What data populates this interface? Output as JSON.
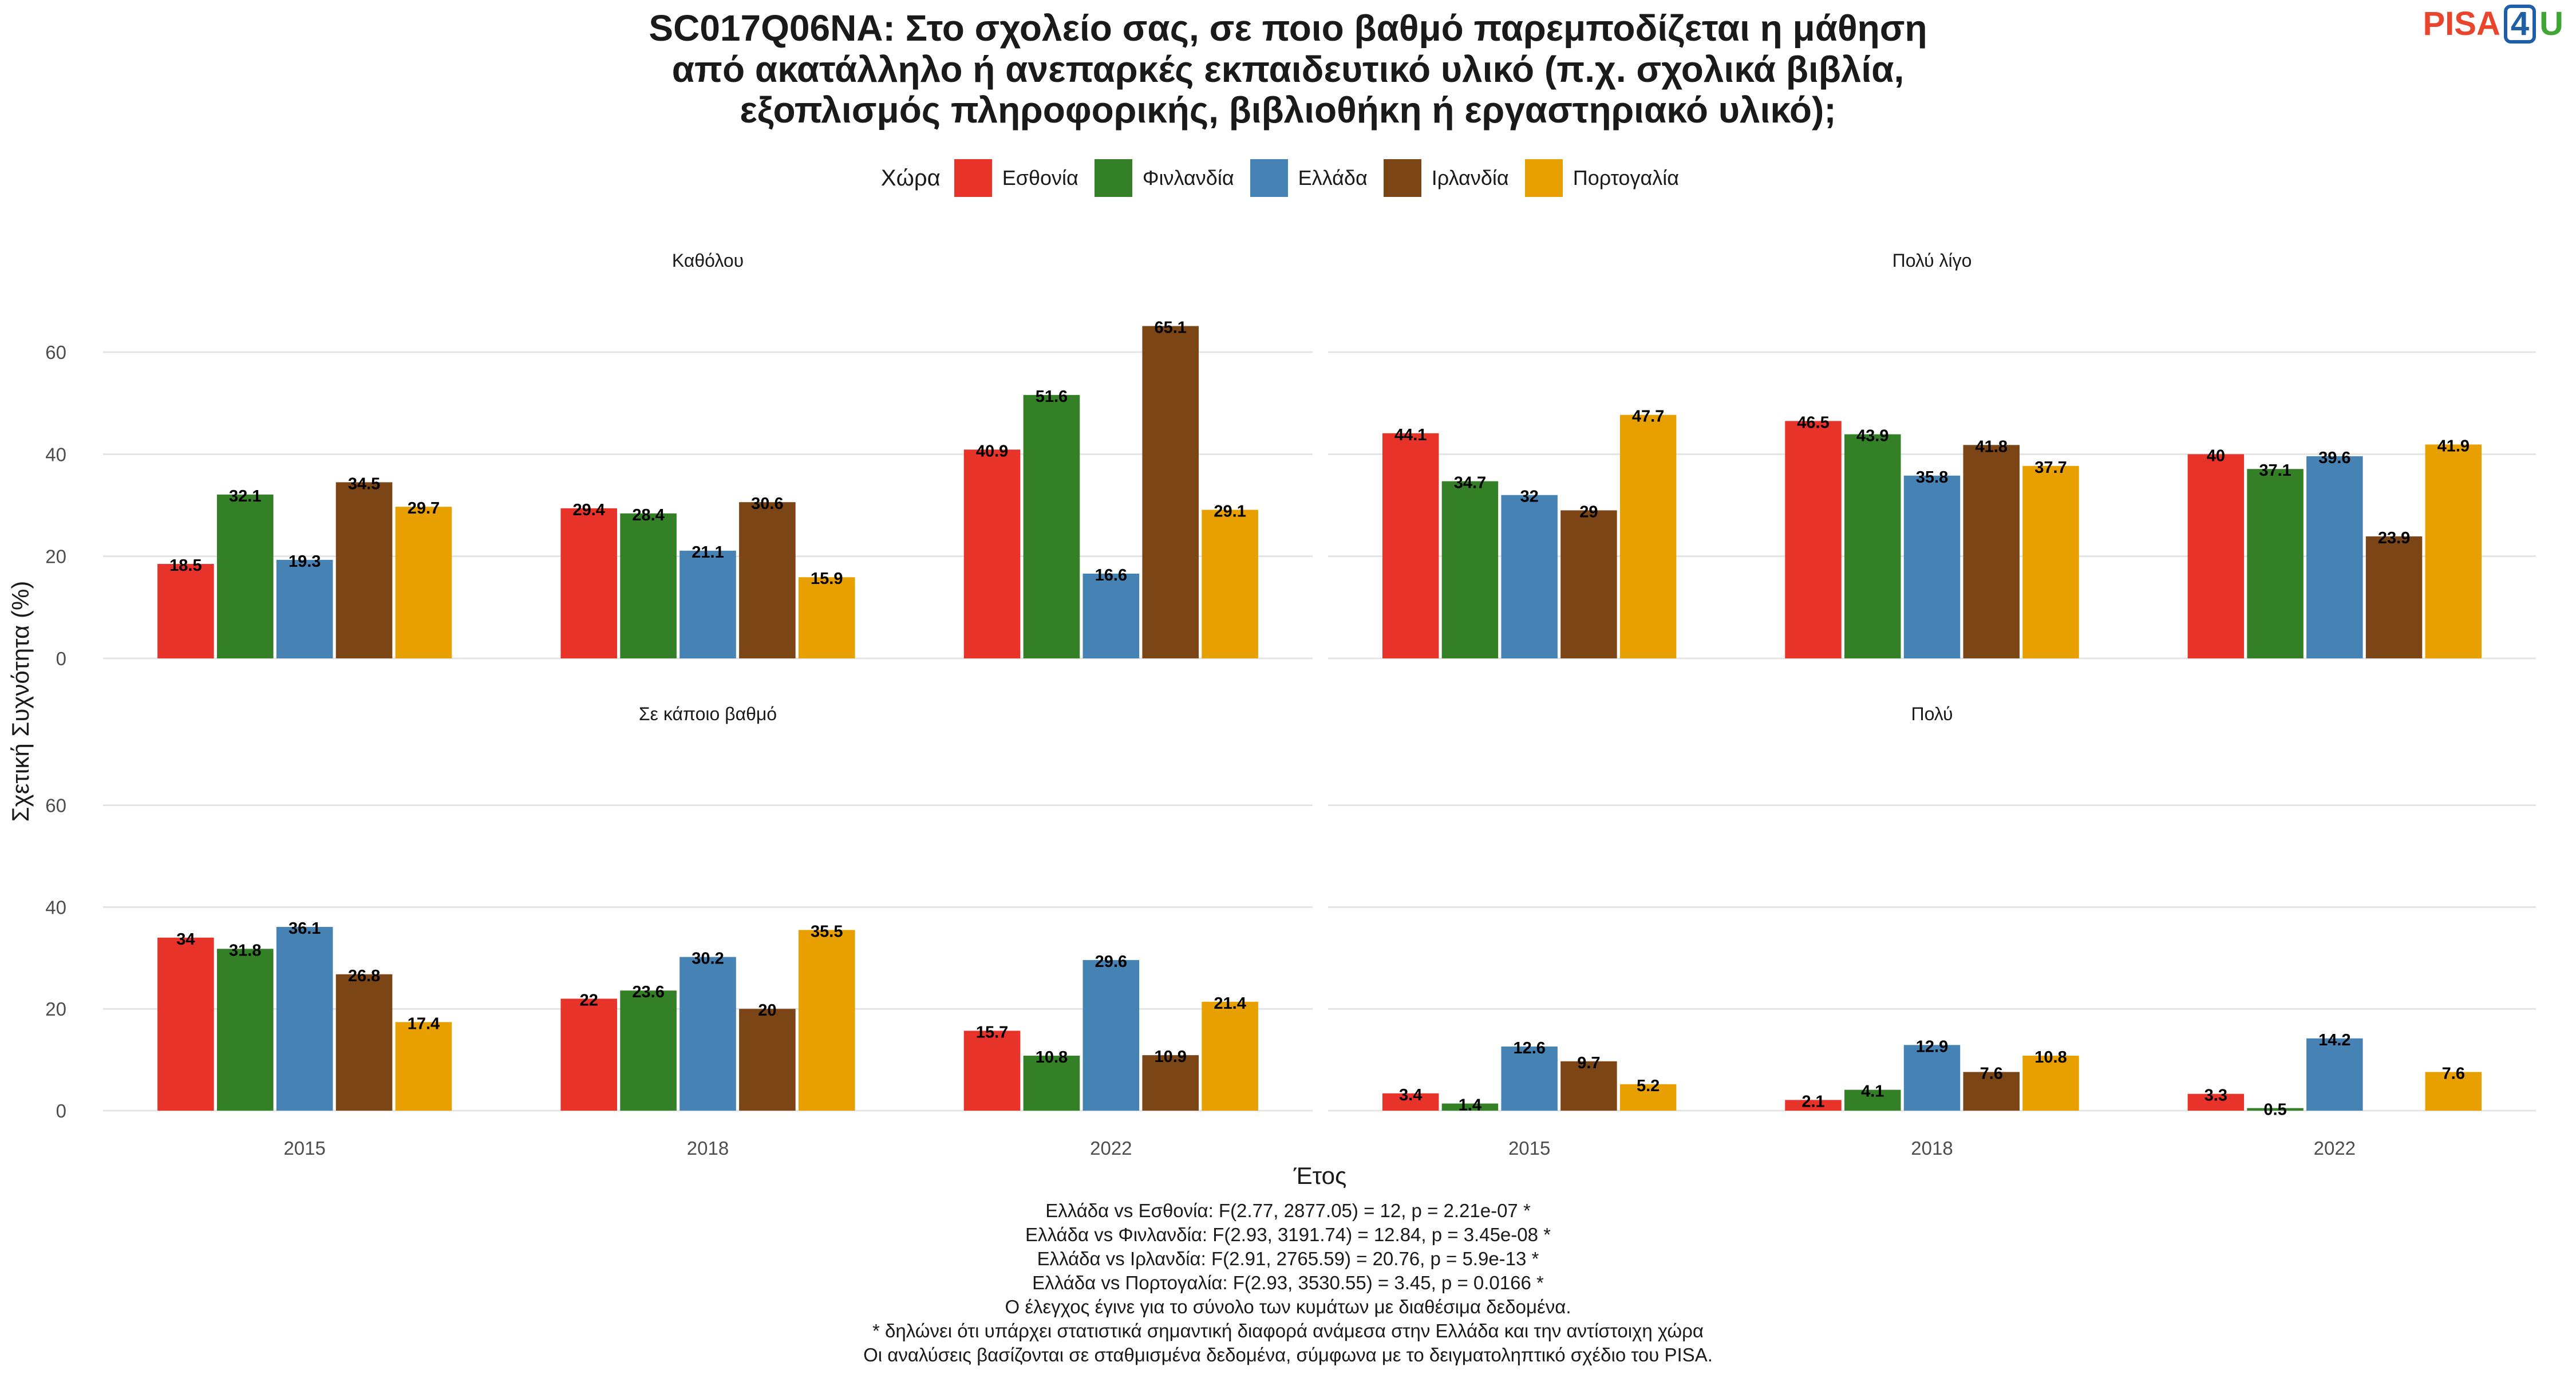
{
  "title_lines": [
    "SC017Q06NA: Στο σχολείο σας, σε ποιο βαθμό παρεμποδίζεται η μάθηση",
    "από ακατάλληλο ή ανεπαρκές εκπαιδευτικό υλικό (π.χ. σχολικά βιβλία,",
    "εξοπλισμός πληροφορικής, βιβλιοθήκη ή εργαστηριακό υλικό);"
  ],
  "logo": {
    "part1": "PISA",
    "part2": "4",
    "part3": "U"
  },
  "legend_title": "Χώρα",
  "colors": {
    "Εσθονία": "#E8332A",
    "Φινλανδία": "#338026",
    "Ελλάδα": "#4682B4",
    "Ιρλανδία": "#7B4516",
    "Πορτογαλία": "#E8A000"
  },
  "caption_lines": [
    "Ελλάδα vs Εσθονία: F(2.77, 2877.05) = 12, p = 2.21e-07 *",
    "Ελλάδα vs Φινλανδία: F(2.93, 3191.74) = 12.84, p = 3.45e-08 *",
    "Ελλάδα vs Ιρλανδία: F(2.91, 2765.59) = 20.76, p = 5.9e-13 *",
    "Ελλάδα vs Πορτογαλία: F(2.93, 3530.55) = 3.45, p = 0.0166 *",
    "Ο έλεγχος έγινε για το σύνολο των κυμάτων με διαθέσιμα δεδομένα.",
    "* δηλώνει ότι υπάρχει στατιστικά σημαντική διαφορά ανάμεσα στην Ελλάδα και την αντίστοιχη χώρα",
    "Οι αναλύσεις βασίζονται σε σταθμισμένα δεδομένα, σύμφωνα με το δειγματοληπτικό σχέδιο του PISA."
  ],
  "chart_data": {
    "type": "bar",
    "xlabel": "Έτος",
    "ylabel": "Σχετική Συχνότητα (%)",
    "ylim": [
      0,
      72
    ],
    "yticks": [
      0,
      20,
      40,
      60
    ],
    "categories": [
      "2015",
      "2018",
      "2022"
    ],
    "series_names": [
      "Εσθονία",
      "Φινλανδία",
      "Ελλάδα",
      "Ιρλανδία",
      "Πορτογαλία"
    ],
    "legend_position": "top",
    "grid": true,
    "panels": [
      {
        "label": "Καθόλου",
        "series": [
          {
            "name": "Εσθονία",
            "values": [
              18.5,
              29.4,
              40.9
            ]
          },
          {
            "name": "Φινλανδία",
            "values": [
              32.1,
              28.4,
              51.6
            ]
          },
          {
            "name": "Ελλάδα",
            "values": [
              19.3,
              21.1,
              16.6
            ]
          },
          {
            "name": "Ιρλανδία",
            "values": [
              34.5,
              30.6,
              65.1
            ]
          },
          {
            "name": "Πορτογαλία",
            "values": [
              29.7,
              15.9,
              29.1
            ]
          }
        ]
      },
      {
        "label": "Πολύ λίγο",
        "series": [
          {
            "name": "Εσθονία",
            "values": [
              44.1,
              46.5,
              40
            ]
          },
          {
            "name": "Φινλανδία",
            "values": [
              34.7,
              43.9,
              37.1
            ]
          },
          {
            "name": "Ελλάδα",
            "values": [
              32,
              35.8,
              39.6
            ]
          },
          {
            "name": "Ιρλανδία",
            "values": [
              29,
              41.8,
              23.9
            ]
          },
          {
            "name": "Πορτογαλία",
            "values": [
              47.7,
              37.7,
              41.9
            ]
          }
        ]
      },
      {
        "label": "Σε κάποιο βαθμό",
        "series": [
          {
            "name": "Εσθονία",
            "values": [
              34,
              22,
              15.7
            ]
          },
          {
            "name": "Φινλανδία",
            "values": [
              31.8,
              23.6,
              10.8
            ]
          },
          {
            "name": "Ελλάδα",
            "values": [
              36.1,
              30.2,
              29.6
            ]
          },
          {
            "name": "Ιρλανδία",
            "values": [
              26.8,
              20,
              10.9
            ]
          },
          {
            "name": "Πορτογαλία",
            "values": [
              17.4,
              35.5,
              21.4
            ]
          }
        ]
      },
      {
        "label": "Πολύ",
        "series": [
          {
            "name": "Εσθονία",
            "values": [
              3.4,
              2.1,
              3.3
            ]
          },
          {
            "name": "Φινλανδία",
            "values": [
              1.4,
              4.1,
              0.5
            ]
          },
          {
            "name": "Ελλάδα",
            "values": [
              12.6,
              12.9,
              14.2
            ]
          },
          {
            "name": "Ιρλανδία",
            "values": [
              9.7,
              7.6,
              null
            ]
          },
          {
            "name": "Πορτογαλία",
            "values": [
              5.2,
              10.8,
              7.6
            ]
          }
        ]
      }
    ]
  }
}
